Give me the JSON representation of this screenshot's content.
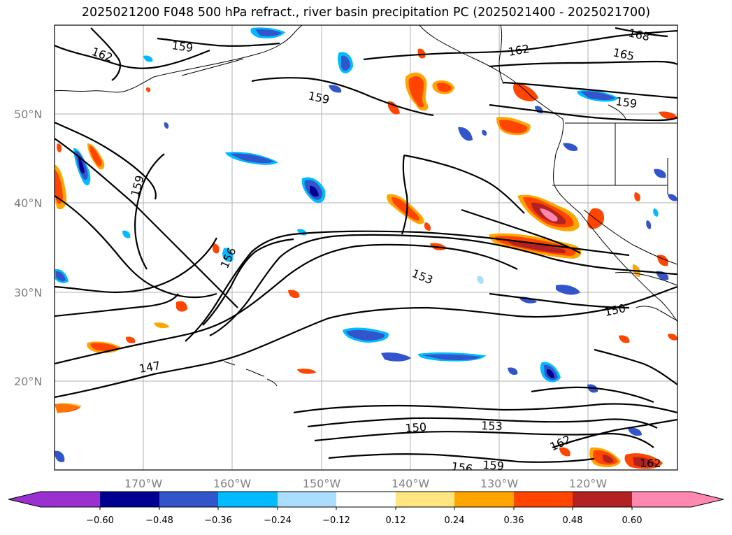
{
  "title": "2025021200 F048 500 hPa refract., river basin precipitation PC (2025021400 - 2025021700)",
  "lat_labels": [
    "50°N",
    "40°N",
    "30°N",
    "20°N"
  ],
  "lon_labels": [
    "170°W",
    "160°W",
    "150°W",
    "140°W",
    "130°W",
    "120°W"
  ],
  "colorbar": {
    "ticks": [
      "−0.60",
      "−0.48",
      "−0.36",
      "−0.24",
      "−0.12",
      "0.12",
      "0.24",
      "0.36",
      "0.48",
      "0.60"
    ],
    "colors": [
      "#9b30d0",
      "#000090",
      "#3355cc",
      "#00bbff",
      "#aaddff",
      "#ffffff",
      "#ffe680",
      "#ffa500",
      "#ff4500",
      "#b22222",
      "#ff88b0"
    ]
  },
  "contour_labels": {
    "l162a": "162",
    "l159a": "159",
    "l162b": "162",
    "l168": "168",
    "l165": "165",
    "l159b": "159",
    "l159c": "159",
    "l159d": "159",
    "l156a": "156",
    "l153a": "153",
    "l150a": "150",
    "l147": "147",
    "l150b": "150",
    "l153b": "153",
    "l162c": "162",
    "l156b": "156",
    "l159e": "159",
    "l162d": "162"
  }
}
